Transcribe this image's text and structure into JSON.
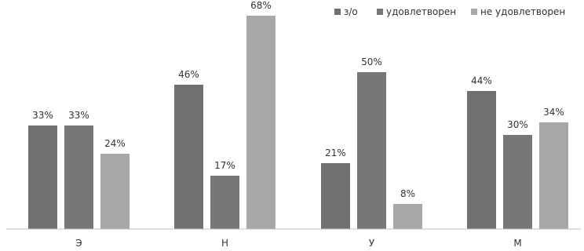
{
  "chart_data": {
    "type": "bar",
    "categories": [
      "Э",
      "Н",
      "У",
      "М"
    ],
    "series": [
      {
        "name": "з/о",
        "values": [
          33,
          46,
          21,
          44
        ],
        "color": "#707070"
      },
      {
        "name": "удовлетворен",
        "values": [
          33,
          17,
          50,
          30
        ],
        "color": "#777777"
      },
      {
        "name": "не удовлетворен",
        "values": [
          24,
          68,
          8,
          34
        ],
        "color": "#a8a8a8"
      }
    ],
    "value_suffix": "%",
    "ylim": [
      0,
      70
    ],
    "grid": false,
    "legend_position": "top-right"
  }
}
